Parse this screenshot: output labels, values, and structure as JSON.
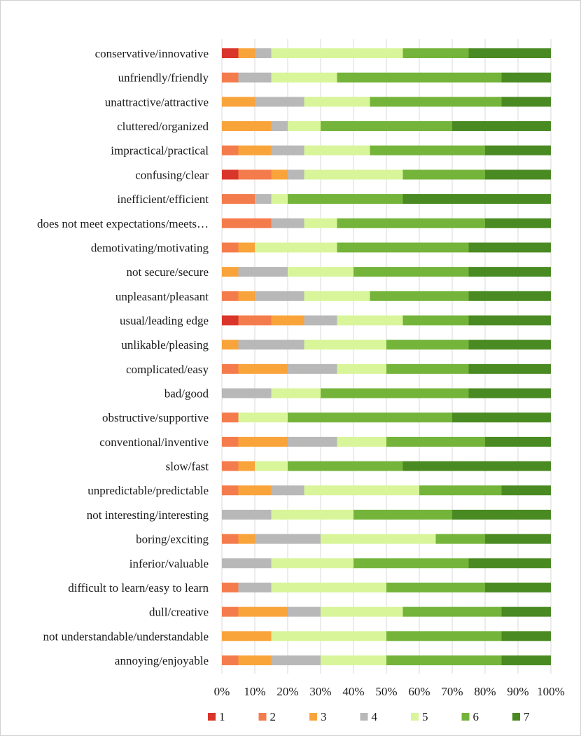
{
  "chart_data": {
    "type": "bar",
    "orientation": "horizontal",
    "stacked": "percent",
    "title": "",
    "xlabel": "",
    "ylabel": "",
    "xlim": [
      0,
      100
    ],
    "x_ticks": [
      "0%",
      "10%",
      "20%",
      "30%",
      "40%",
      "50%",
      "60%",
      "70%",
      "80%",
      "90%",
      "100%"
    ],
    "legend_position": "bottom",
    "grid": true,
    "categories": [
      "conservative/innovative",
      "unfriendly/friendly",
      "unattractive/attractive",
      "cluttered/organized",
      "impractical/practical",
      "confusing/clear",
      "inefficient/efficient",
      "does not meet expectations/meets…",
      "demotivating/motivating",
      "not secure/secure",
      "unpleasant/pleasant",
      "usual/leading edge",
      "unlikable/pleasing",
      "complicated/easy",
      "bad/good",
      "obstructive/supportive",
      "conventional/inventive",
      "slow/fast",
      "unpredictable/predictable",
      "not interesting/interesting",
      "boring/exciting",
      "inferior/valuable",
      "difficult to learn/easy to learn",
      "dull/creative",
      "not understandable/understandable",
      "annoying/enjoyable"
    ],
    "series": [
      {
        "name": "1",
        "color": "#d9352a",
        "values": [
          5,
          0,
          0,
          0,
          0,
          5,
          0,
          0,
          0,
          0,
          0,
          5,
          0,
          0,
          0,
          0,
          0,
          0,
          0,
          0,
          0,
          0,
          0,
          0,
          0,
          0
        ]
      },
      {
        "name": "2",
        "color": "#f47c4c",
        "values": [
          0,
          5,
          0,
          0,
          5,
          10,
          10,
          15,
          5,
          0,
          5,
          10,
          0,
          5,
          0,
          5,
          5,
          5,
          5,
          0,
          5,
          0,
          5,
          5,
          0,
          5
        ]
      },
      {
        "name": "3",
        "color": "#f9a43b",
        "values": [
          5,
          0,
          10,
          15,
          10,
          5,
          0,
          0,
          5,
          5,
          5,
          10,
          5,
          15,
          0,
          0,
          15,
          5,
          10,
          0,
          5,
          0,
          0,
          15,
          15,
          10
        ]
      },
      {
        "name": "4",
        "color": "#b8b8b8",
        "values": [
          5,
          10,
          15,
          5,
          10,
          5,
          5,
          10,
          0,
          15,
          15,
          10,
          20,
          15,
          15,
          0,
          15,
          0,
          10,
          15,
          20,
          15,
          10,
          10,
          0,
          15
        ]
      },
      {
        "name": "5",
        "color": "#d8f59a",
        "values": [
          40,
          20,
          20,
          10,
          20,
          30,
          5,
          10,
          25,
          20,
          20,
          20,
          25,
          15,
          15,
          15,
          15,
          10,
          35,
          25,
          35,
          25,
          35,
          25,
          35,
          20
        ]
      },
      {
        "name": "6",
        "color": "#74b43a",
        "values": [
          20,
          50,
          40,
          40,
          35,
          25,
          35,
          45,
          40,
          35,
          30,
          20,
          25,
          25,
          45,
          50,
          30,
          35,
          25,
          30,
          15,
          35,
          30,
          30,
          35,
          35
        ]
      },
      {
        "name": "7",
        "color": "#4a8a22",
        "values": [
          25,
          15,
          15,
          30,
          20,
          20,
          45,
          20,
          25,
          25,
          25,
          25,
          25,
          25,
          25,
          30,
          20,
          45,
          15,
          30,
          20,
          25,
          20,
          15,
          15,
          15
        ]
      }
    ]
  }
}
